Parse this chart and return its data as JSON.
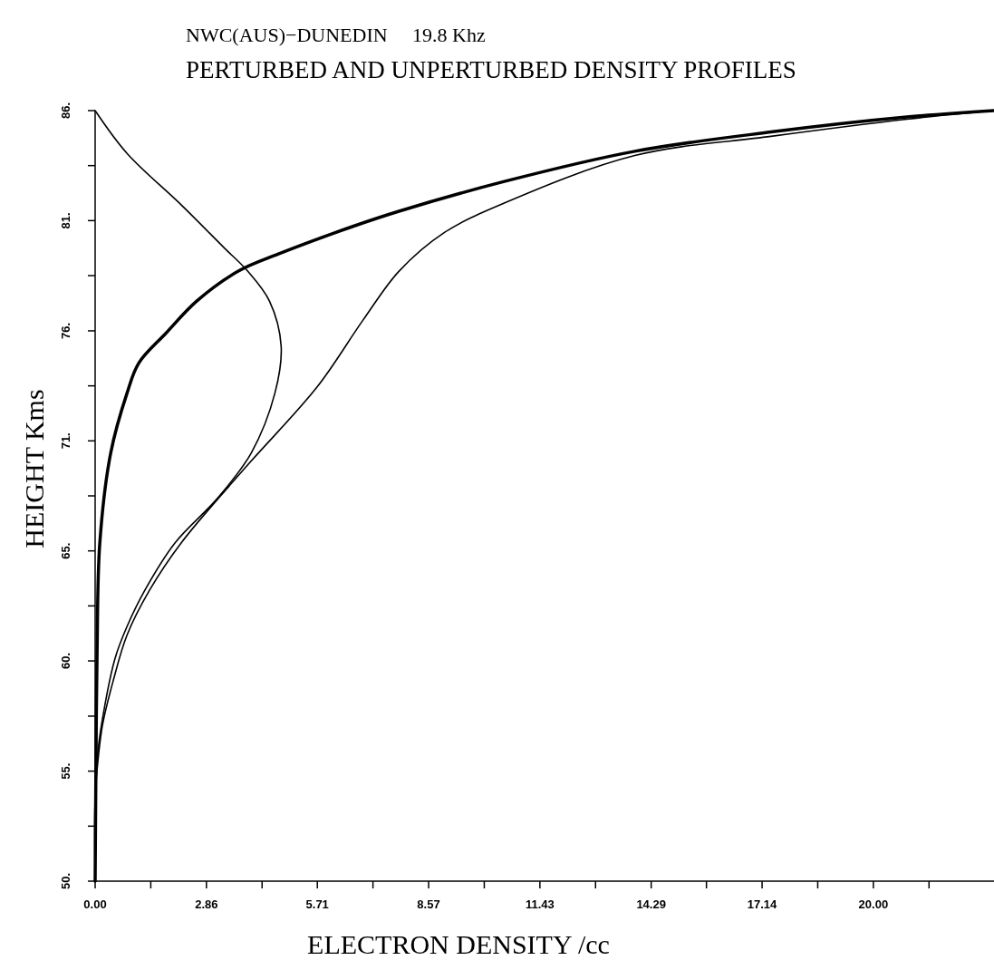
{
  "chart_data": {
    "type": "line",
    "title": "NWC(AUS)−DUNEDIN     19.8 Khz",
    "subtitle": "PERTURBED AND UNPERTURBED DENSITY PROFILES",
    "xlabel": "ELECTRON DENSITY /cc",
    "ylabel": "HEIGHT Kms",
    "xlim": [
      0,
      23.1
    ],
    "ylim": [
      50,
      86
    ],
    "xticks": [
      {
        "value": 0,
        "label": "0.00"
      },
      {
        "value": 1.43,
        "label": null
      },
      2.86,
      {
        "value": 4.29,
        "label": null
      },
      5.71,
      {
        "value": 7.14,
        "label": null
      },
      8.57,
      {
        "value": 10,
        "label": null
      },
      11.43,
      {
        "value": 12.86,
        "label": null
      },
      14.29,
      {
        "value": 15.71,
        "label": null
      },
      17.14,
      {
        "value": 18.57,
        "label": null
      },
      {
        "value": 20,
        "label": "20.00"
      },
      {
        "value": 21.43,
        "label": null
      }
    ],
    "yticks": [
      {
        "value": 50,
        "label": "50."
      },
      {
        "value": 52.57,
        "label": null
      },
      {
        "value": 55.14,
        "label": "55."
      },
      {
        "value": 57.71,
        "label": null
      },
      {
        "value": 60.29,
        "label": "60."
      },
      {
        "value": 62.86,
        "label": null
      },
      {
        "value": 65.43,
        "label": "65."
      },
      {
        "value": 68,
        "label": null
      },
      {
        "value": 70.57,
        "label": "71."
      },
      {
        "value": 73.14,
        "label": null
      },
      {
        "value": 75.71,
        "label": "76."
      },
      {
        "value": 78.29,
        "label": null
      },
      {
        "value": 80.86,
        "label": "81."
      },
      {
        "value": 83.43,
        "label": null
      },
      {
        "value": 86,
        "label": "86."
      }
    ],
    "grid": false,
    "series": [
      {
        "color": "#000000",
        "x": [
          0,
          0.02,
          0.05,
          0.12,
          0.4,
          0.82,
          1.12,
          1.82,
          2.61,
          3.68,
          4.71,
          6.64,
          7.81,
          10.54,
          13.87,
          17.37,
          20.86,
          23.1
        ],
        "values": [
          50,
          55.2,
          60.7,
          65.8,
          70.0,
          72.8,
          74.2,
          75.6,
          77.1,
          78.5,
          79.3,
          80.6,
          81.3,
          82.7,
          84.1,
          85.0,
          85.7,
          86
        ]
      },
      {
        "color": "#000000",
        "x": [
          0,
          0.82,
          2.21,
          3.31,
          3.92,
          4.48,
          4.78,
          4.62,
          4.01,
          3.15,
          2.05,
          1.28,
          0.82,
          0.51,
          0.19,
          0.05,
          0,
          0
        ],
        "values": [
          86,
          84.0,
          81.6,
          79.6,
          78.5,
          77.1,
          75.0,
          72.8,
          70.0,
          67.9,
          65.8,
          63.6,
          61.9,
          60.4,
          57.6,
          55.7,
          53.9,
          50
        ]
      },
      {
        "color": "#000000",
        "x": [
          0,
          0,
          0.05,
          0.19,
          0.47,
          0.82,
          1.4,
          2.21,
          3.85,
          5.71,
          6.88,
          7.81,
          8.97,
          10.54,
          13.87,
          17.37,
          20.86,
          23.1
        ],
        "values": [
          50,
          53.9,
          55.2,
          57.3,
          59.4,
          61.5,
          63.6,
          65.8,
          69.3,
          73.1,
          76.2,
          78.5,
          80.3,
          81.7,
          83.9,
          84.8,
          85.6,
          86
        ]
      }
    ]
  }
}
